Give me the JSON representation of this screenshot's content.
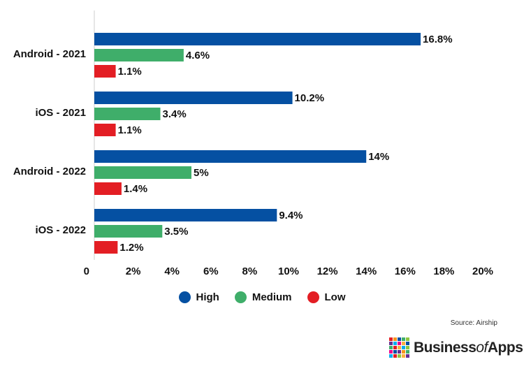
{
  "chart_data": {
    "type": "bar",
    "orientation": "horizontal",
    "categories": [
      "Android - 2021",
      "iOS - 2021",
      "Android - 2022",
      "iOS - 2022"
    ],
    "series": [
      {
        "name": "High",
        "color": "#0550a2",
        "values": [
          16.8,
          10.2,
          14,
          9.4
        ],
        "labels": [
          "16.8%",
          "10.2%",
          "14%",
          "9.4%"
        ]
      },
      {
        "name": "Medium",
        "color": "#3fae6a",
        "values": [
          4.6,
          3.4,
          5,
          3.5
        ],
        "labels": [
          "4.6%",
          "3.4%",
          "5%",
          "3.5%"
        ]
      },
      {
        "name": "Low",
        "color": "#e31e24",
        "values": [
          1.1,
          1.1,
          1.4,
          1.2
        ],
        "labels": [
          "1.1%",
          "1.1%",
          "1.4%",
          "1.2%"
        ]
      }
    ],
    "xlim": [
      0,
      20
    ],
    "x_ticks": [
      "0",
      "2%",
      "4%",
      "6%",
      "8%",
      "10%",
      "12%",
      "14%",
      "16%",
      "18%",
      "20%"
    ],
    "grid": false,
    "legend_position": "bottom"
  },
  "source": "Source: Airship",
  "brand": {
    "prefix": "Business",
    "middle": "of",
    "suffix": "Apps",
    "logo_colors": [
      "#e31e24",
      "#f7941d",
      "#0550a2",
      "#3fae6a",
      "#8dc63f",
      "#662d91",
      "#00aeef",
      "#ec008c",
      "#fbb040",
      "#0550a2",
      "#3fae6a",
      "#e31e24",
      "#fbb040",
      "#00aeef",
      "#8dc63f",
      "#ec008c",
      "#0550a2",
      "#662d91",
      "#f7941d",
      "#3fae6a",
      "#00aeef",
      "#e31e24",
      "#8dc63f",
      "#fbb040",
      "#662d91"
    ]
  }
}
